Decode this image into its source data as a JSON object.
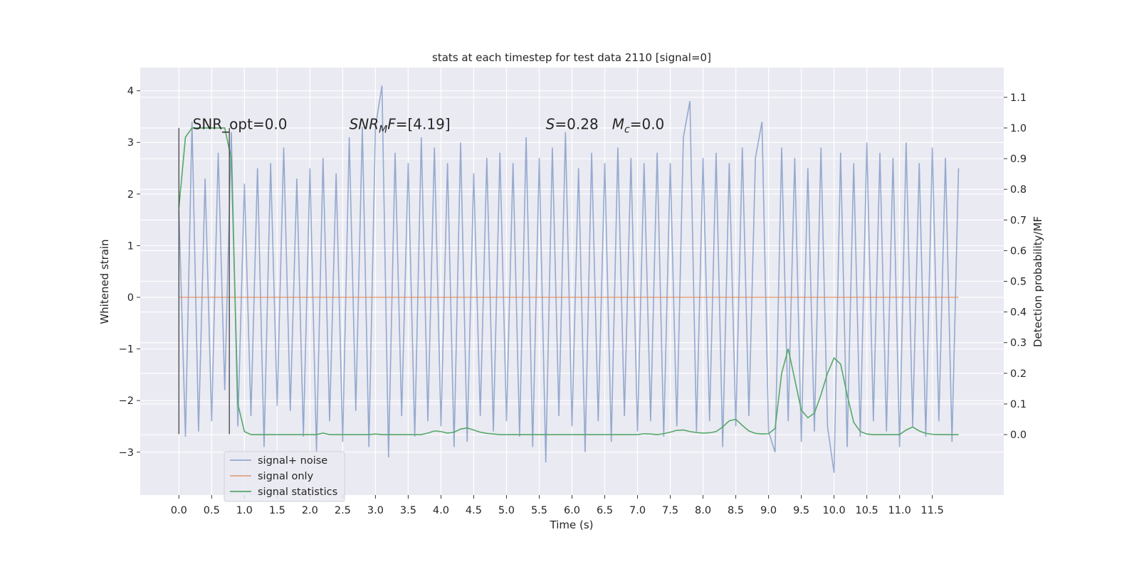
{
  "chart_data": {
    "type": "line",
    "title": "stats at each timestep for test data 2110 [signal=0]",
    "xlabel": "Time (s)",
    "ylabel": "Whitened strain",
    "y2label": "Detection probability/MF",
    "background": "#eaeaf2",
    "grid": true,
    "legend": "lower left",
    "xlim": [
      -0.59,
      12.59
    ],
    "ylim": [
      -3.83,
      4.45
    ],
    "y2lim": [
      -0.197,
      1.197
    ],
    "xticks": [
      {
        "value": 0,
        "label": "0.0"
      },
      0.5,
      {
        "value": 1,
        "label": "1.0"
      },
      1.5,
      {
        "value": 2,
        "label": "2.0"
      },
      2.5,
      {
        "value": 3,
        "label": "3.0"
      },
      3.5,
      {
        "value": 4,
        "label": "4.0"
      },
      4.5,
      {
        "value": 5,
        "label": "5.0"
      },
      5.5,
      {
        "value": 6,
        "label": "6.0"
      },
      6.5,
      {
        "value": 7,
        "label": "7.0"
      },
      7.5,
      {
        "value": 8,
        "label": "8.0"
      },
      8.5,
      {
        "value": 9,
        "label": "9.0"
      },
      9.5,
      {
        "value": 10,
        "label": "10.0"
      },
      10.5,
      {
        "value": 11,
        "label": "11.0"
      },
      11.5
    ],
    "yticks": [
      {
        "value": -3,
        "label": "−3"
      },
      {
        "value": -2,
        "label": "−2"
      },
      {
        "value": -1,
        "label": "−1"
      },
      0,
      1,
      2,
      3,
      4
    ],
    "y2ticks": [
      {
        "value": 0,
        "label": "0.0"
      },
      0.1,
      0.2,
      0.3,
      0.4,
      0.5,
      0.6,
      0.7,
      0.8,
      0.9,
      {
        "value": 1,
        "label": "1.0"
      },
      1.1
    ],
    "x": [
      0,
      0.1,
      0.2,
      0.3,
      0.4,
      0.5,
      0.6,
      0.7,
      0.8,
      0.9,
      1,
      1.1,
      1.2,
      1.3,
      1.4,
      1.5,
      1.6,
      1.7,
      1.8,
      1.9,
      2,
      2.1,
      2.2,
      2.3,
      2.4,
      2.5,
      2.6,
      2.7,
      2.8,
      2.9,
      3,
      3.1,
      3.2,
      3.3,
      3.4,
      3.5,
      3.6,
      3.7,
      3.8,
      3.9,
      4,
      4.1,
      4.2,
      4.3,
      4.4,
      4.5,
      4.6,
      4.7,
      4.8,
      4.9,
      5,
      5.1,
      5.2,
      5.3,
      5.4,
      5.5,
      5.6,
      5.7,
      5.8,
      5.9,
      6,
      6.1,
      6.2,
      6.3,
      6.4,
      6.5,
      6.6,
      6.7,
      6.8,
      6.9,
      7,
      7.1,
      7.2,
      7.3,
      7.4,
      7.5,
      7.6,
      7.7,
      7.8,
      7.9,
      8,
      8.1,
      8.2,
      8.3,
      8.4,
      8.5,
      8.6,
      8.7,
      8.8,
      8.9,
      9,
      9.1,
      9.2,
      9.3,
      9.4,
      9.5,
      9.6,
      9.7,
      9.8,
      9.9,
      10,
      10.1,
      10.2,
      10.3,
      10.4,
      10.5,
      10.6,
      10.7,
      10.8,
      10.9,
      11,
      11.1,
      11.2,
      11.3,
      11.4,
      11.5,
      11.6,
      11.7,
      11.8,
      11.9
    ],
    "series": [
      {
        "name": "signal+ noise",
        "color": "#4c72b0",
        "alpha": 0.55,
        "values": [
          1.7,
          -2.7,
          3.4,
          -2.6,
          2.3,
          -2.4,
          2.8,
          -1.8,
          3.2,
          -2.5,
          2.2,
          -2.3,
          2.5,
          -2.9,
          2.6,
          -2.1,
          2.9,
          -2.2,
          2.3,
          -2.7,
          2.5,
          -3.0,
          2.7,
          -2.4,
          2.4,
          -2.8,
          3.1,
          -2.2,
          3.3,
          -2.9,
          3.3,
          4.1,
          -3.1,
          2.8,
          -2.3,
          2.6,
          -2.7,
          3.1,
          -2.4,
          2.9,
          -2.5,
          2.6,
          -2.9,
          3.0,
          -2.8,
          2.4,
          -2.3,
          2.7,
          -2.6,
          2.8,
          -2.4,
          2.6,
          -2.7,
          3.1,
          -2.9,
          2.7,
          -3.2,
          2.9,
          -2.3,
          3.2,
          -2.5,
          2.5,
          -3.0,
          2.8,
          -2.4,
          2.6,
          -2.8,
          2.9,
          -2.3,
          2.7,
          -2.6,
          2.6,
          -2.4,
          2.8,
          -2.7,
          2.6,
          -2.5,
          3.1,
          3.8,
          -2.6,
          2.7,
          -2.4,
          2.8,
          -2.9,
          2.6,
          -2.5,
          2.9,
          -2.3,
          2.7,
          3.4,
          -2.6,
          -3.0,
          2.9,
          -2.4,
          2.7,
          -2.8,
          2.5,
          -2.6,
          2.9,
          -2.5,
          -3.4,
          2.8,
          -2.9,
          2.6,
          -2.7,
          3.0,
          -2.4,
          2.8,
          -2.6,
          2.7,
          -2.9,
          3.0,
          -2.5,
          2.6,
          -2.7,
          2.9,
          -2.4,
          2.7,
          -2.8,
          2.5
        ]
      },
      {
        "name": "signal only",
        "color": "#dd8452",
        "alpha": 0.7,
        "values": [
          0,
          0,
          0,
          0,
          0,
          0,
          0,
          0,
          0,
          0,
          0,
          0,
          0,
          0,
          0,
          0,
          0,
          0,
          0,
          0,
          0,
          0,
          0,
          0,
          0,
          0,
          0,
          0,
          0,
          0,
          0,
          0,
          0,
          0,
          0,
          0,
          0,
          0,
          0,
          0,
          0,
          0,
          0,
          0,
          0,
          0,
          0,
          0,
          0,
          0,
          0,
          0,
          0,
          0,
          0,
          0,
          0,
          0,
          0,
          0,
          0,
          0,
          0,
          0,
          0,
          0,
          0,
          0,
          0,
          0,
          0,
          0,
          0,
          0,
          0,
          0,
          0,
          0,
          0,
          0,
          0,
          0,
          0,
          0,
          0,
          0,
          0,
          0,
          0,
          0,
          0,
          0,
          0,
          0,
          0,
          0,
          0,
          0,
          0,
          0,
          0,
          0,
          0,
          0,
          0,
          0,
          0,
          0,
          0,
          0,
          0,
          0,
          0,
          0,
          0,
          0,
          0,
          0,
          0,
          0
        ]
      },
      {
        "name": "signal statistics",
        "color": "#55a868",
        "alpha": 1,
        "axis": "y2",
        "values": [
          0.74,
          0.97,
          1.0,
          1.0,
          1.0,
          1.0,
          1.0,
          1.0,
          0.9,
          0.1,
          0.01,
          0,
          0,
          0,
          0,
          0,
          0,
          0,
          0,
          0,
          0,
          0,
          0.005,
          0,
          0,
          0,
          0,
          0,
          0,
          0,
          0.002,
          0,
          0,
          0,
          0,
          0,
          0,
          0,
          0.005,
          0.012,
          0.01,
          0.005,
          0.008,
          0.018,
          0.022,
          0.015,
          0.008,
          0.004,
          0.002,
          0,
          0,
          0,
          0,
          0,
          0,
          0,
          0,
          0,
          0,
          0,
          0,
          0,
          0,
          0,
          0,
          0,
          0,
          0,
          0,
          0,
          0,
          0.003,
          0.002,
          0,
          0.003,
          0.008,
          0.014,
          0.015,
          0.01,
          0.007,
          0.005,
          0.006,
          0.01,
          0.025,
          0.045,
          0.05,
          0.03,
          0.012,
          0.004,
          0.002,
          0.003,
          0.02,
          0.2,
          0.28,
          0.18,
          0.08,
          0.055,
          0.07,
          0.13,
          0.2,
          0.25,
          0.23,
          0.13,
          0.04,
          0.01,
          0.002,
          0,
          0,
          0,
          0,
          0,
          0.015,
          0.025,
          0.012,
          0.004,
          0.001,
          0,
          0,
          0,
          0
        ]
      }
    ],
    "vlines": {
      "x": [
        0,
        0.77
      ],
      "ymin": -2.65,
      "ymax": 3.28,
      "color": "#444444"
    },
    "annotations": [
      {
        "x": 0.21,
        "y": 3.26,
        "parts": [
          {
            "text": "SNR_opt=0.0",
            "style": "normal"
          }
        ]
      },
      {
        "x": 2.6,
        "y": 3.26,
        "parts": [
          {
            "text": "SNR",
            "style": "italic"
          },
          {
            "text": "M",
            "style": "sub"
          },
          {
            "text": "F",
            "style": "italic"
          },
          {
            "text": "=[4.19]",
            "style": "normal"
          }
        ]
      },
      {
        "x": 5.6,
        "y": 3.26,
        "parts": [
          {
            "text": "S",
            "style": "italic"
          },
          {
            "text": "=0.28   ",
            "style": "normal"
          },
          {
            "text": "M",
            "style": "italic"
          },
          {
            "text": "c",
            "style": "sub"
          },
          {
            "text": "=0.0",
            "style": "normal"
          }
        ]
      }
    ]
  }
}
